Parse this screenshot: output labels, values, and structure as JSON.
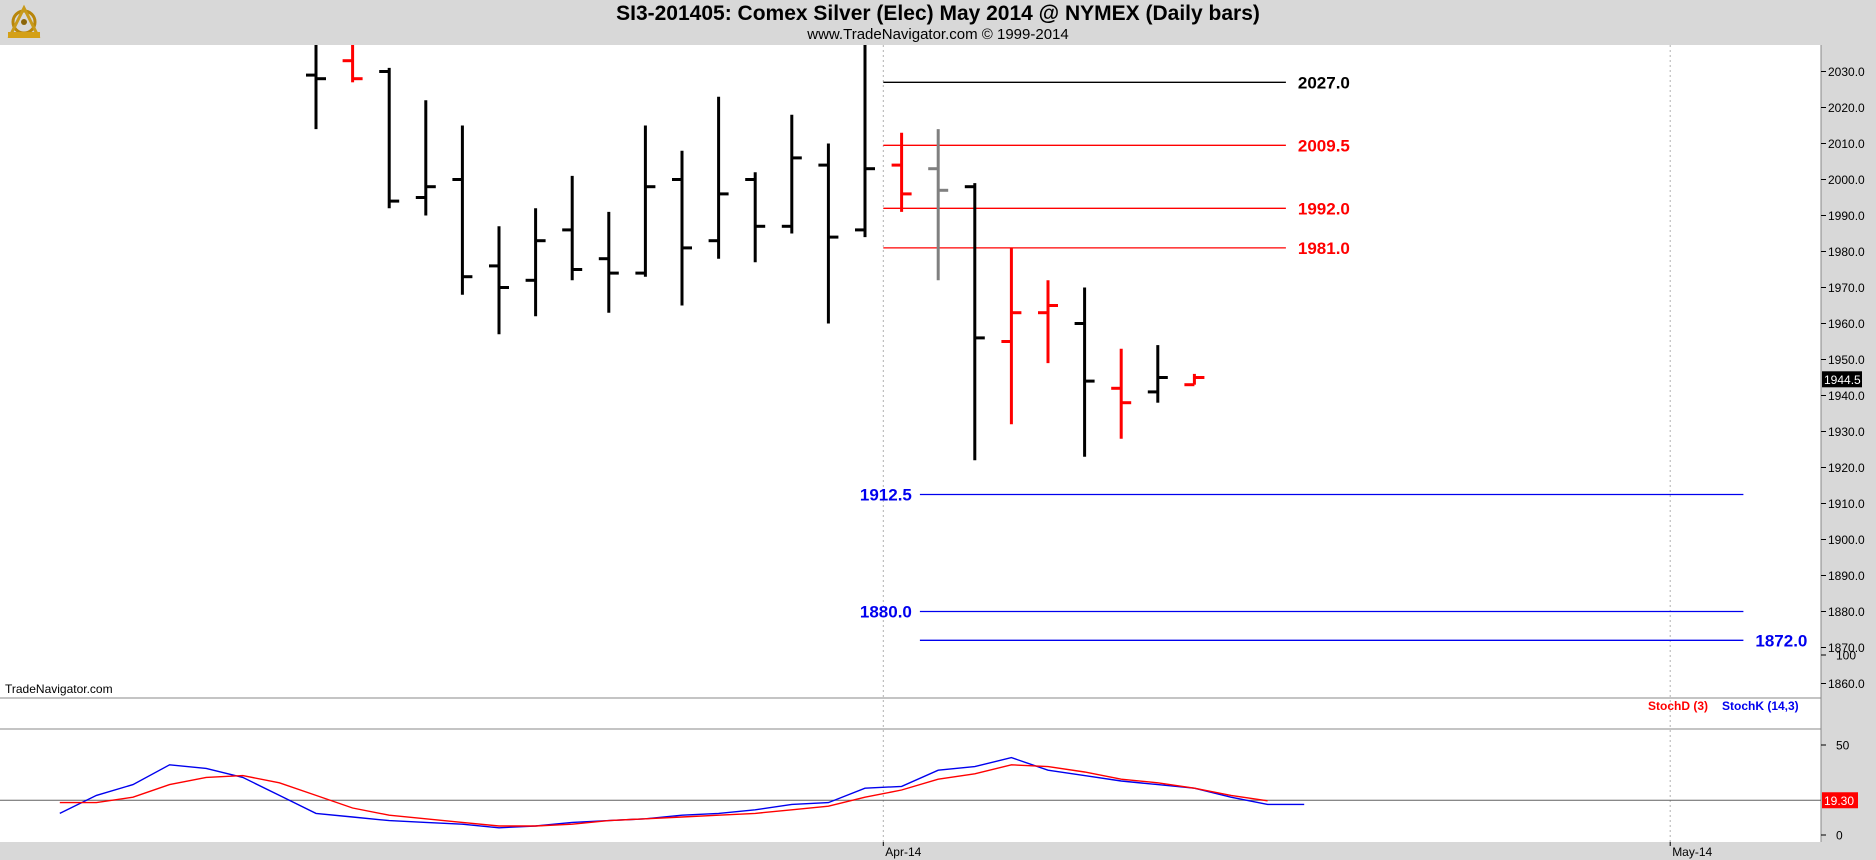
{
  "header": {
    "title": "SI3-201405:  Comex Silver (Elec) May 2014 @ NYMEX  (Daily bars)",
    "subtitle": "www.TradeNavigator.com © 1999-2014"
  },
  "watermark": "TradeNavigator.com",
  "colors": {
    "up": "#000000",
    "down": "#ff0000",
    "neutral": "#808080",
    "level_black": "#000000",
    "level_red": "#ff0000",
    "level_blue": "#0000ee",
    "stoch_d": "#ff0000",
    "stoch_k": "#0000ee",
    "price_box": "#000000",
    "stoch_box": "#ff0000"
  },
  "chart_data": [
    {
      "type": "ohlc",
      "ylim": [
        1855,
        2037
      ],
      "yticks": [
        "2030.0",
        "2020.0",
        "2010.0",
        "2000.0",
        "1990.0",
        "1980.0",
        "1970.0",
        "1960.0",
        "1950.0",
        "1940.0",
        "1930.0",
        "1920.0",
        "1910.0",
        "1900.0",
        "1890.0",
        "1880.0",
        "1870.0",
        "1860.0"
      ],
      "xticks": [
        {
          "label": "Apr-14",
          "index": 15.5
        },
        {
          "label": "May-14",
          "index": 37
        }
      ],
      "last_price": "1944.5",
      "bars": [
        {
          "o": 2029,
          "h": 2045,
          "l": 2014,
          "c": 2028,
          "color": "up"
        },
        {
          "o": 2033,
          "h": 2042,
          "l": 2027,
          "c": 2028,
          "color": "down"
        },
        {
          "o": 2030,
          "h": 2031,
          "l": 1992,
          "c": 1994,
          "color": "up"
        },
        {
          "o": 1995,
          "h": 2022,
          "l": 1990,
          "c": 1998,
          "color": "up"
        },
        {
          "o": 2000,
          "h": 2015,
          "l": 1968,
          "c": 1973,
          "color": "up"
        },
        {
          "o": 1976,
          "h": 1987,
          "l": 1957,
          "c": 1970,
          "color": "up"
        },
        {
          "o": 1972,
          "h": 1992,
          "l": 1962,
          "c": 1983,
          "color": "up"
        },
        {
          "o": 1986,
          "h": 2001,
          "l": 1972,
          "c": 1975,
          "color": "up"
        },
        {
          "o": 1978,
          "h": 1991,
          "l": 1963,
          "c": 1974,
          "color": "up"
        },
        {
          "o": 1974,
          "h": 2015,
          "l": 1973,
          "c": 1998,
          "color": "up"
        },
        {
          "o": 2000,
          "h": 2008,
          "l": 1965,
          "c": 1981,
          "color": "up"
        },
        {
          "o": 1983,
          "h": 2023,
          "l": 1978,
          "c": 1996,
          "color": "up"
        },
        {
          "o": 2000,
          "h": 2002,
          "l": 1977,
          "c": 1987,
          "color": "up"
        },
        {
          "o": 1987,
          "h": 2018,
          "l": 1985,
          "c": 2006,
          "color": "up"
        },
        {
          "o": 2004,
          "h": 2010,
          "l": 1960,
          "c": 1984,
          "color": "up"
        },
        {
          "o": 1986,
          "h": 2040,
          "l": 1984,
          "c": 2003,
          "color": "up"
        },
        {
          "o": 2004,
          "h": 2013,
          "l": 1991,
          "c": 1996,
          "color": "down"
        },
        {
          "o": 2003,
          "h": 2014,
          "l": 1972,
          "c": 1997,
          "color": "neutral"
        },
        {
          "o": 1998,
          "h": 1999,
          "l": 1922,
          "c": 1956,
          "color": "up"
        },
        {
          "o": 1955,
          "h": 1981,
          "l": 1932,
          "c": 1963,
          "color": "down"
        },
        {
          "o": 1963,
          "h": 1972,
          "l": 1949,
          "c": 1965,
          "color": "down"
        },
        {
          "o": 1960,
          "h": 1970,
          "l": 1923,
          "c": 1944,
          "color": "up"
        },
        {
          "o": 1942,
          "h": 1953,
          "l": 1928,
          "c": 1938,
          "color": "down"
        },
        {
          "o": 1941,
          "h": 1954,
          "l": 1938,
          "c": 1945,
          "color": "up"
        },
        {
          "o": 1943,
          "h": 1946,
          "l": 1943,
          "c": 1945,
          "color": "down"
        }
      ],
      "levels": [
        {
          "value": 2027.0,
          "label": "2027.0",
          "color": "level_black",
          "from": 15.5,
          "to": 26.5,
          "label_side": "right"
        },
        {
          "value": 2009.5,
          "label": "2009.5",
          "color": "level_red",
          "from": 15.5,
          "to": 26.5,
          "label_side": "right"
        },
        {
          "value": 1992.0,
          "label": "1992.0",
          "color": "level_red",
          "from": 15.5,
          "to": 26.5,
          "label_side": "right"
        },
        {
          "value": 1981.0,
          "label": "1981.0",
          "color": "level_red",
          "from": 15.5,
          "to": 26.5,
          "label_side": "right"
        },
        {
          "value": 1912.5,
          "label": "1912.5",
          "color": "level_blue",
          "from": 16.5,
          "to": 39,
          "label_side": "left"
        },
        {
          "value": 1880.0,
          "label": "1880.0",
          "color": "level_blue",
          "from": 16.5,
          "to": 39,
          "label_side": "left"
        },
        {
          "value": 1872.0,
          "label": "1872.0",
          "color": "level_blue",
          "from": 16.5,
          "to": 39,
          "label_side": "right"
        }
      ]
    },
    {
      "type": "line",
      "ylim": [
        0,
        100
      ],
      "yticks": [
        "100",
        "50",
        "0"
      ],
      "reference_line": 19.3,
      "last_value": "19.30",
      "legend": [
        {
          "name": "StochD (3)",
          "color": "stoch_d"
        },
        {
          "name": "StochK (14,3)",
          "color": "stoch_k"
        }
      ],
      "x": [
        -7,
        -6,
        -5,
        -4,
        -3,
        -2,
        -1,
        0,
        1,
        2,
        3,
        4,
        5,
        6,
        7,
        8,
        9,
        10,
        11,
        12,
        13,
        14,
        15,
        16,
        17,
        18,
        19,
        20,
        21,
        22,
        23,
        24,
        25,
        26,
        27,
        28,
        29,
        30,
        31,
        32
      ],
      "series": [
        {
          "name": "StochD (3)",
          "color": "stoch_d",
          "values": [
            18,
            18,
            21,
            28,
            32,
            33,
            29,
            22,
            15,
            11,
            9,
            7,
            5,
            5,
            6,
            8,
            9,
            10,
            11,
            12,
            14,
            16,
            21,
            25,
            31,
            34,
            39,
            38,
            35,
            31,
            29,
            26,
            22,
            19,
            null,
            null,
            null,
            null,
            null,
            null
          ]
        },
        {
          "name": "StochK (14,3)",
          "color": "stoch_k",
          "values": [
            12,
            22,
            28,
            39,
            37,
            32,
            22,
            12,
            10,
            8,
            7,
            6,
            4,
            5,
            7,
            8,
            9,
            11,
            12,
            14,
            17,
            18,
            26,
            27,
            36,
            38,
            43,
            36,
            33,
            30,
            28,
            26,
            21,
            17,
            17,
            null,
            null,
            null,
            null,
            null
          ]
        }
      ]
    }
  ]
}
